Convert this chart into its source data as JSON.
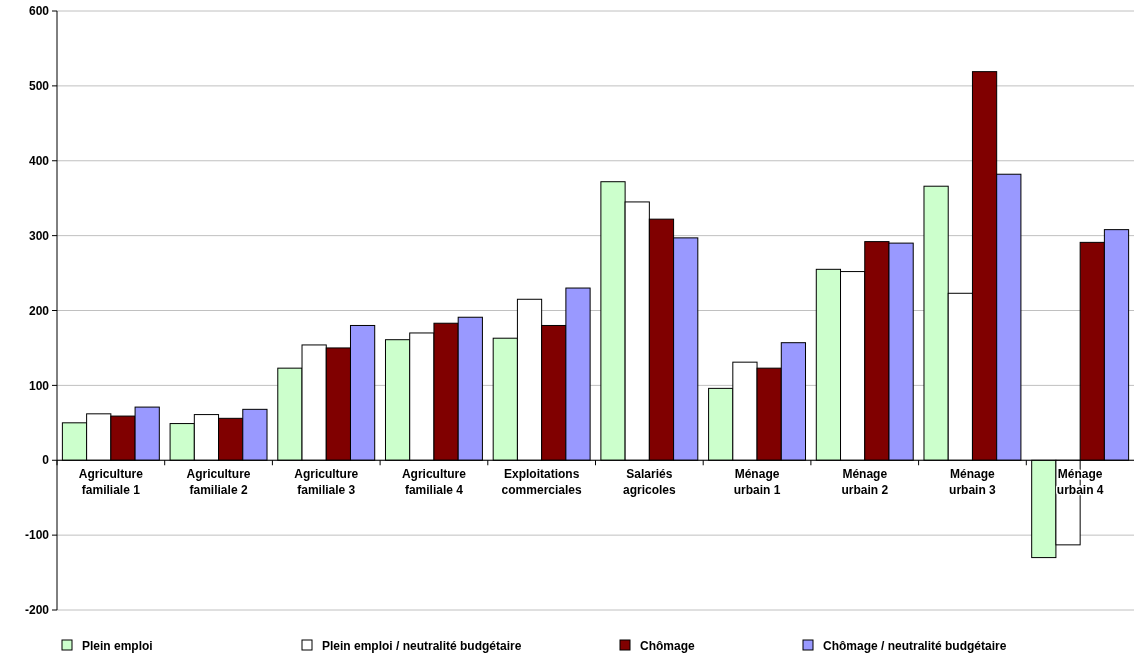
{
  "chart_data": {
    "type": "bar",
    "categories": [
      "Agriculture familiale 1",
      "Agriculture familiale  2",
      "Agriculture familiale 3",
      "Agriculture familiale  4",
      "Exploitations commerciales",
      "Salariés agricoles",
      "Ménage urbain 1",
      "Ménage urbain 2",
      "Ménage urbain 3",
      "Ménage urbain 4"
    ],
    "series": [
      {
        "name": "Plein emploi",
        "color": "#ccffcc",
        "values": [
          50,
          49,
          123,
          161,
          163,
          372,
          96,
          255,
          366,
          -130
        ]
      },
      {
        "name": "Plein emploi / neutralité budgétaire",
        "color": "#ffffff",
        "values": [
          62,
          61,
          154,
          170,
          215,
          345,
          131,
          252,
          223,
          -113
        ]
      },
      {
        "name": "Chômage",
        "color": "#800000",
        "values": [
          59,
          56,
          150,
          183,
          180,
          322,
          123,
          292,
          519,
          291
        ]
      },
      {
        "name": "Chômage / neutralité budgétaire",
        "color": "#9999ff",
        "values": [
          71,
          68,
          180,
          191,
          230,
          297,
          157,
          290,
          382,
          308
        ]
      }
    ],
    "ylim": [
      -200,
      600
    ],
    "yticks": [
      -200,
      -100,
      0,
      100,
      200,
      300,
      400,
      500,
      600
    ],
    "grid": "y",
    "legend": "bottom"
  }
}
